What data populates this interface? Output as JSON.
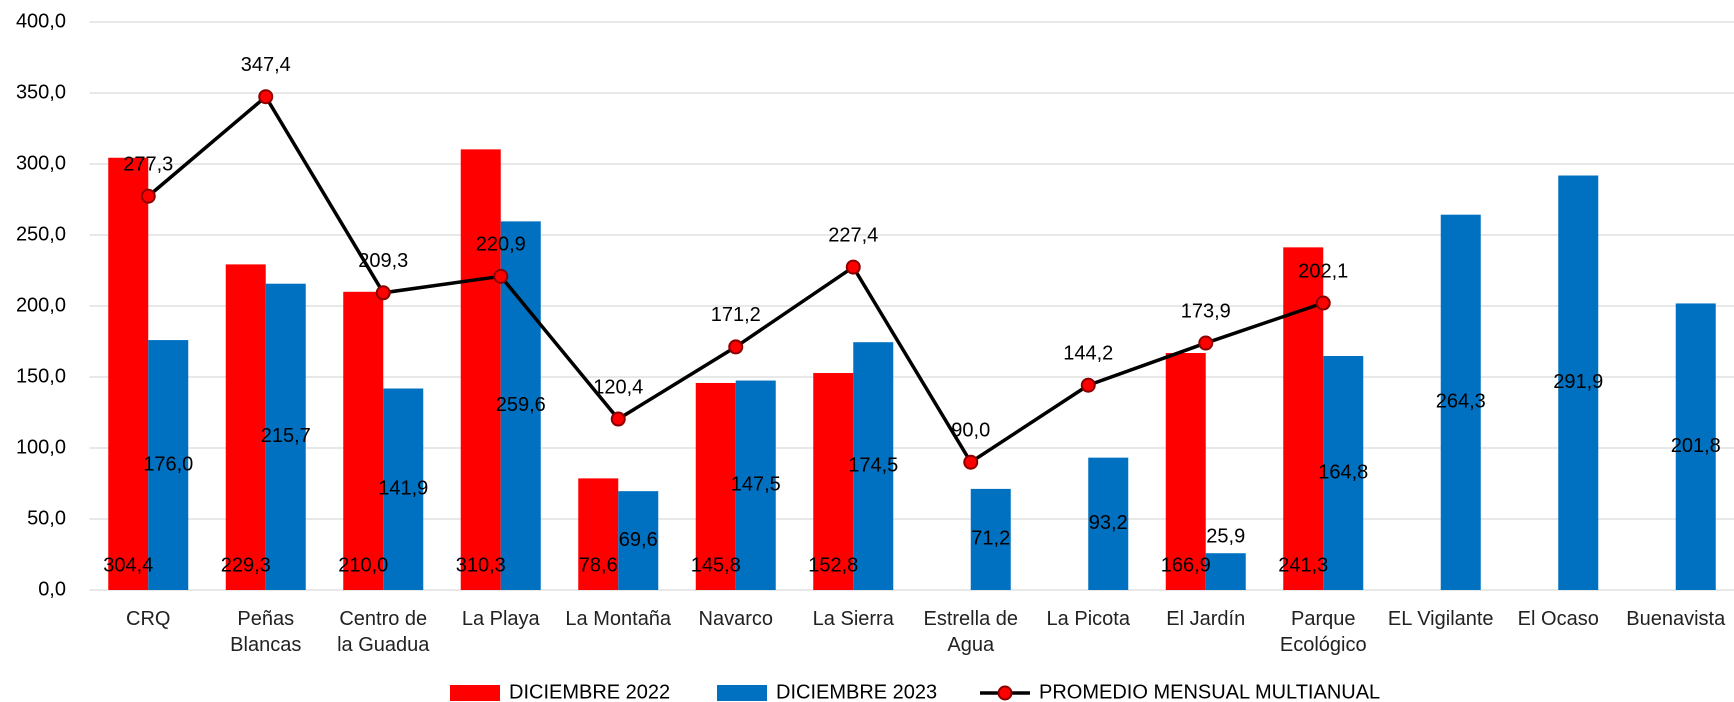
{
  "chart_data": {
    "type": "bar",
    "categories": [
      "CRQ",
      "Peñas\nBlancas",
      "Centro de\nla Guadua",
      "La Playa",
      "La Montaña",
      "Navarco",
      "La Sierra",
      "Estrella de\nAgua",
      "La Picota",
      "El Jardín",
      "Parque\nEcológico",
      "EL Vigilante",
      "El Ocaso",
      "Buenavista"
    ],
    "series": [
      {
        "name": "DICIEMBRE 2022",
        "color": "#ff0000",
        "values": [
          304.4,
          229.3,
          210.0,
          310.3,
          78.6,
          145.8,
          152.8,
          null,
          null,
          166.9,
          241.3,
          null,
          null,
          null
        ],
        "value_labels": [
          "304,4",
          "229,3",
          "210,0",
          "310,3",
          "78,6",
          "145,8",
          "152,8",
          null,
          null,
          "166,9",
          "241,3",
          null,
          null,
          null
        ]
      },
      {
        "name": "DICIEMBRE 2023",
        "color": "#0070c0",
        "values": [
          176.0,
          215.7,
          141.9,
          259.6,
          69.6,
          147.5,
          174.5,
          71.2,
          93.2,
          25.9,
          164.8,
          264.3,
          291.9,
          201.8
        ],
        "value_labels": [
          "176,0",
          "215,7",
          "141,9",
          "259,6",
          "69,6",
          "147,5",
          "174,5",
          "71,2",
          "93,2",
          "25,9",
          "164,8",
          "264,3",
          "291,9",
          "201,8"
        ]
      },
      {
        "name": "PROMEDIO MENSUAL MULTIANUAL",
        "type": "line",
        "color": "#000000",
        "marker_color": "#ff0000",
        "values": [
          277.3,
          347.4,
          209.3,
          220.9,
          120.4,
          171.2,
          227.4,
          90.0,
          144.2,
          173.9,
          202.1,
          null,
          null,
          null
        ],
        "value_labels": [
          "277,3",
          "347,4",
          "209,3",
          "220,9",
          "120,4",
          "171,2",
          "227,4",
          "90,0",
          "144,2",
          "173,9",
          "202,1",
          null,
          null,
          null
        ]
      }
    ],
    "ylim": [
      0,
      400
    ],
    "yticks": [
      {
        "value": 0,
        "label": "0,0"
      },
      {
        "value": 50,
        "label": "50,0"
      },
      {
        "value": 100,
        "label": "100,0"
      },
      {
        "value": 150,
        "label": "150,0"
      },
      {
        "value": 200,
        "label": "200,0"
      },
      {
        "value": 250,
        "label": "250,0"
      },
      {
        "value": 300,
        "label": "300,0"
      },
      {
        "value": 350,
        "label": "350,0"
      },
      {
        "value": 400,
        "label": "400,0"
      }
    ],
    "grid": true,
    "legend": "bottom"
  }
}
